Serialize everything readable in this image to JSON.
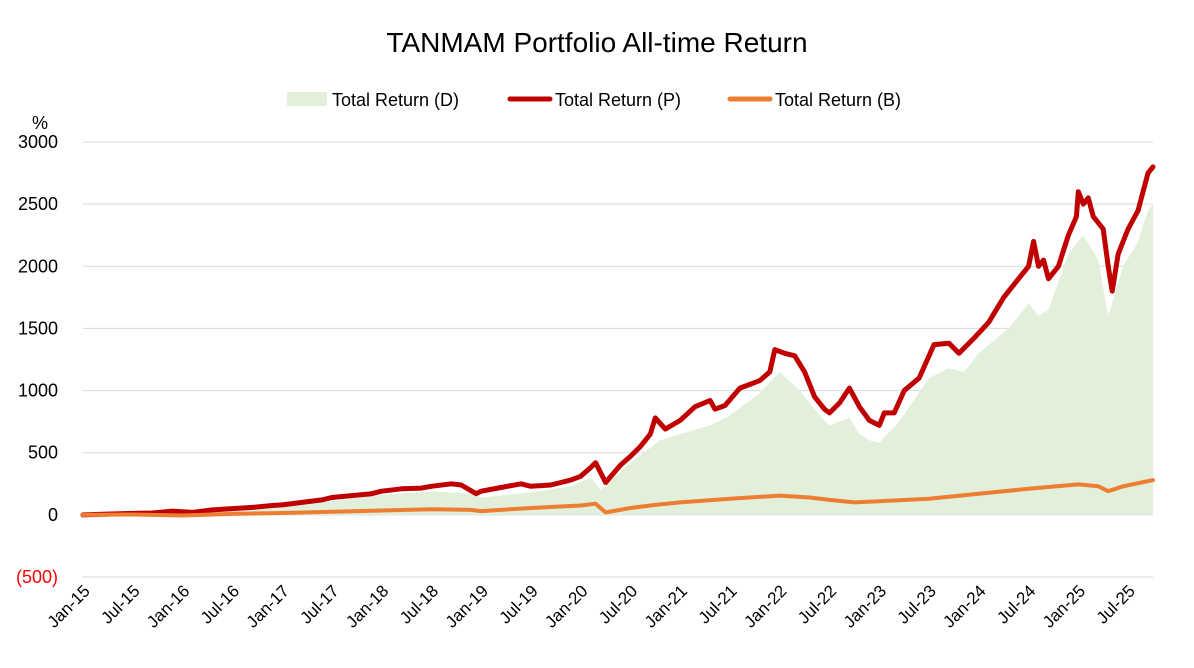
{
  "chart_data": {
    "type": "line",
    "title": "TANMAM Portfolio All-time Return",
    "ylabel": "%",
    "xlabel": "",
    "ylim": [
      -500,
      3000
    ],
    "y_ticks": [
      {
        "value": 3000,
        "label": "3000"
      },
      {
        "value": 2500,
        "label": "2500"
      },
      {
        "value": 2000,
        "label": "2000"
      },
      {
        "value": 1500,
        "label": "1500"
      },
      {
        "value": 1000,
        "label": "1000"
      },
      {
        "value": 500,
        "label": "500"
      },
      {
        "value": 0,
        "label": "0"
      },
      {
        "value": -500,
        "label": "(500)"
      }
    ],
    "x_start": 2015.0,
    "x_end": 2025.75,
    "x_ticks": [
      {
        "value": 2015.0,
        "label": "Jan-15"
      },
      {
        "value": 2015.5,
        "label": "Jul-15"
      },
      {
        "value": 2016.0,
        "label": "Jan-16"
      },
      {
        "value": 2016.5,
        "label": "Jul-16"
      },
      {
        "value": 2017.0,
        "label": "Jan-17"
      },
      {
        "value": 2017.5,
        "label": "Jul-17"
      },
      {
        "value": 2018.0,
        "label": "Jan-18"
      },
      {
        "value": 2018.5,
        "label": "Jul-18"
      },
      {
        "value": 2019.0,
        "label": "Jan-19"
      },
      {
        "value": 2019.5,
        "label": "Jul-19"
      },
      {
        "value": 2020.0,
        "label": "Jan-20"
      },
      {
        "value": 2020.5,
        "label": "Jul-20"
      },
      {
        "value": 2021.0,
        "label": "Jan-21"
      },
      {
        "value": 2021.5,
        "label": "Jul-21"
      },
      {
        "value": 2022.0,
        "label": "Jan-22"
      },
      {
        "value": 2022.5,
        "label": "Jul-22"
      },
      {
        "value": 2023.0,
        "label": "Jan-23"
      },
      {
        "value": 2023.5,
        "label": "Jul-23"
      },
      {
        "value": 2024.0,
        "label": "Jan-24"
      },
      {
        "value": 2024.5,
        "label": "Jul-24"
      },
      {
        "value": 2025.0,
        "label": "Jan-25"
      },
      {
        "value": 2025.5,
        "label": "Jul-25"
      }
    ],
    "series": [
      {
        "name": "Total Return (D)",
        "kind": "area",
        "color": "#E2EFDA",
        "points": [
          [
            2015.0,
            0
          ],
          [
            2015.5,
            8
          ],
          [
            2016.0,
            18
          ],
          [
            2016.5,
            35
          ],
          [
            2017.0,
            60
          ],
          [
            2017.5,
            110
          ],
          [
            2018.0,
            160
          ],
          [
            2018.5,
            190
          ],
          [
            2018.9,
            170
          ],
          [
            2019.0,
            140
          ],
          [
            2019.5,
            180
          ],
          [
            2019.9,
            230
          ],
          [
            2020.1,
            300
          ],
          [
            2020.2,
            200
          ],
          [
            2020.5,
            420
          ],
          [
            2020.8,
            600
          ],
          [
            2021.0,
            650
          ],
          [
            2021.3,
            720
          ],
          [
            2021.5,
            800
          ],
          [
            2021.8,
            980
          ],
          [
            2022.0,
            1150
          ],
          [
            2022.2,
            1000
          ],
          [
            2022.4,
            800
          ],
          [
            2022.5,
            720
          ],
          [
            2022.6,
            750
          ],
          [
            2022.7,
            780
          ],
          [
            2022.8,
            650
          ],
          [
            2022.9,
            600
          ],
          [
            2023.0,
            580
          ],
          [
            2023.2,
            750
          ],
          [
            2023.5,
            1100
          ],
          [
            2023.7,
            1180
          ],
          [
            2023.85,
            1150
          ],
          [
            2024.0,
            1300
          ],
          [
            2024.3,
            1500
          ],
          [
            2024.5,
            1700
          ],
          [
            2024.6,
            1600
          ],
          [
            2024.7,
            1650
          ],
          [
            2024.9,
            2100
          ],
          [
            2025.05,
            2250
          ],
          [
            2025.2,
            2050
          ],
          [
            2025.3,
            1600
          ],
          [
            2025.45,
            2000
          ],
          [
            2025.6,
            2200
          ],
          [
            2025.7,
            2450
          ],
          [
            2025.75,
            2500
          ]
        ]
      },
      {
        "name": "Total Return (P)",
        "kind": "line",
        "color": "#C00000",
        "points": [
          [
            2015.0,
            0
          ],
          [
            2015.2,
            5
          ],
          [
            2015.5,
            12
          ],
          [
            2015.7,
            15
          ],
          [
            2015.9,
            30
          ],
          [
            2016.1,
            20
          ],
          [
            2016.3,
            40
          ],
          [
            2016.5,
            50
          ],
          [
            2016.7,
            60
          ],
          [
            2016.9,
            75
          ],
          [
            2017.0,
            80
          ],
          [
            2017.2,
            100
          ],
          [
            2017.4,
            120
          ],
          [
            2017.5,
            140
          ],
          [
            2017.7,
            155
          ],
          [
            2017.9,
            170
          ],
          [
            2018.0,
            190
          ],
          [
            2018.2,
            210
          ],
          [
            2018.4,
            215
          ],
          [
            2018.5,
            230
          ],
          [
            2018.7,
            250
          ],
          [
            2018.8,
            240
          ],
          [
            2018.95,
            170
          ],
          [
            2019.0,
            190
          ],
          [
            2019.2,
            220
          ],
          [
            2019.4,
            250
          ],
          [
            2019.5,
            230
          ],
          [
            2019.7,
            240
          ],
          [
            2019.9,
            280
          ],
          [
            2020.0,
            310
          ],
          [
            2020.1,
            380
          ],
          [
            2020.15,
            420
          ],
          [
            2020.25,
            260
          ],
          [
            2020.4,
            400
          ],
          [
            2020.5,
            470
          ],
          [
            2020.6,
            550
          ],
          [
            2020.7,
            650
          ],
          [
            2020.75,
            780
          ],
          [
            2020.85,
            690
          ],
          [
            2021.0,
            760
          ],
          [
            2021.15,
            870
          ],
          [
            2021.3,
            920
          ],
          [
            2021.35,
            850
          ],
          [
            2021.45,
            880
          ],
          [
            2021.6,
            1020
          ],
          [
            2021.7,
            1050
          ],
          [
            2021.8,
            1080
          ],
          [
            2021.9,
            1150
          ],
          [
            2021.95,
            1330
          ],
          [
            2022.05,
            1300
          ],
          [
            2022.15,
            1280
          ],
          [
            2022.25,
            1150
          ],
          [
            2022.35,
            950
          ],
          [
            2022.45,
            850
          ],
          [
            2022.5,
            820
          ],
          [
            2022.6,
            900
          ],
          [
            2022.7,
            1020
          ],
          [
            2022.8,
            870
          ],
          [
            2022.9,
            760
          ],
          [
            2023.0,
            720
          ],
          [
            2023.05,
            820
          ],
          [
            2023.15,
            820
          ],
          [
            2023.25,
            1000
          ],
          [
            2023.4,
            1100
          ],
          [
            2023.55,
            1370
          ],
          [
            2023.7,
            1380
          ],
          [
            2023.8,
            1300
          ],
          [
            2023.95,
            1420
          ],
          [
            2024.1,
            1550
          ],
          [
            2024.25,
            1750
          ],
          [
            2024.4,
            1900
          ],
          [
            2024.5,
            2000
          ],
          [
            2024.55,
            2200
          ],
          [
            2024.6,
            2000
          ],
          [
            2024.65,
            2050
          ],
          [
            2024.7,
            1900
          ],
          [
            2024.8,
            2000
          ],
          [
            2024.9,
            2250
          ],
          [
            2024.98,
            2400
          ],
          [
            2025.0,
            2600
          ],
          [
            2025.05,
            2500
          ],
          [
            2025.1,
            2550
          ],
          [
            2025.15,
            2400
          ],
          [
            2025.25,
            2300
          ],
          [
            2025.3,
            2000
          ],
          [
            2025.34,
            1800
          ],
          [
            2025.4,
            2100
          ],
          [
            2025.5,
            2300
          ],
          [
            2025.6,
            2450
          ],
          [
            2025.7,
            2750
          ],
          [
            2025.75,
            2800
          ]
        ]
      },
      {
        "name": "Total Return (B)",
        "kind": "line",
        "color": "#ED7D31",
        "points": [
          [
            2015.0,
            0
          ],
          [
            2015.5,
            3
          ],
          [
            2016.0,
            -5
          ],
          [
            2016.5,
            8
          ],
          [
            2017.0,
            15
          ],
          [
            2017.5,
            25
          ],
          [
            2018.0,
            35
          ],
          [
            2018.5,
            45
          ],
          [
            2018.9,
            40
          ],
          [
            2019.0,
            30
          ],
          [
            2019.5,
            55
          ],
          [
            2020.0,
            75
          ],
          [
            2020.15,
            90
          ],
          [
            2020.25,
            20
          ],
          [
            2020.5,
            55
          ],
          [
            2020.75,
            80
          ],
          [
            2021.0,
            100
          ],
          [
            2021.5,
            130
          ],
          [
            2022.0,
            155
          ],
          [
            2022.3,
            140
          ],
          [
            2022.5,
            120
          ],
          [
            2022.75,
            100
          ],
          [
            2023.0,
            110
          ],
          [
            2023.5,
            130
          ],
          [
            2024.0,
            170
          ],
          [
            2024.5,
            210
          ],
          [
            2025.0,
            245
          ],
          [
            2025.2,
            230
          ],
          [
            2025.3,
            190
          ],
          [
            2025.45,
            230
          ],
          [
            2025.75,
            280
          ]
        ]
      }
    ],
    "legend_position": "top-center"
  }
}
